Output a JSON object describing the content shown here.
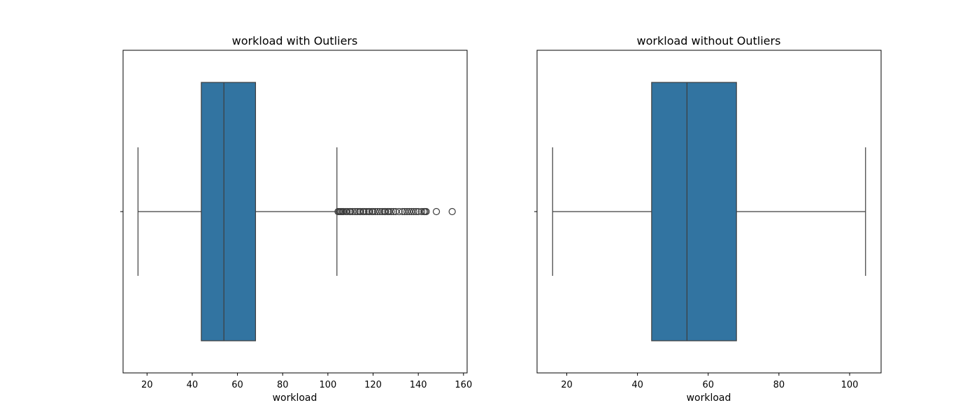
{
  "chart_data": [
    {
      "type": "box",
      "title": "workload with Outliers",
      "xlabel": "workload",
      "ylabel": "",
      "xlim": [
        9.4,
        161.6
      ],
      "xticks": [
        20,
        40,
        60,
        80,
        100,
        120,
        140,
        160
      ],
      "orientation": "horizontal",
      "color": "#3274a1",
      "box": {
        "whisker_low": 16,
        "q1": 44,
        "median": 54,
        "q3": 68,
        "whisker_high": 104
      },
      "outliers": [
        104.5,
        105,
        105.5,
        106,
        106.5,
        107,
        108,
        108.5,
        109.5,
        110,
        111,
        112,
        113,
        114,
        114.5,
        115.5,
        116,
        117,
        118,
        118.5,
        119.5,
        120,
        121,
        122,
        123,
        124,
        125,
        125.5,
        126.5,
        127,
        128,
        129,
        130,
        131.5,
        133,
        134,
        135,
        136,
        137,
        138,
        139,
        140,
        141.5,
        142.5,
        143,
        143.5,
        148,
        155
      ]
    },
    {
      "type": "box",
      "title": "workload without Outliers",
      "xlabel": "workload",
      "ylabel": "",
      "xlim": [
        11.6,
        108.9
      ],
      "xticks": [
        20,
        40,
        60,
        80,
        100
      ],
      "orientation": "horizontal",
      "color": "#3274a1",
      "box": {
        "whisker_low": 16,
        "q1": 44,
        "median": 54,
        "q3": 68,
        "whisker_high": 104.5
      },
      "outliers": []
    }
  ]
}
